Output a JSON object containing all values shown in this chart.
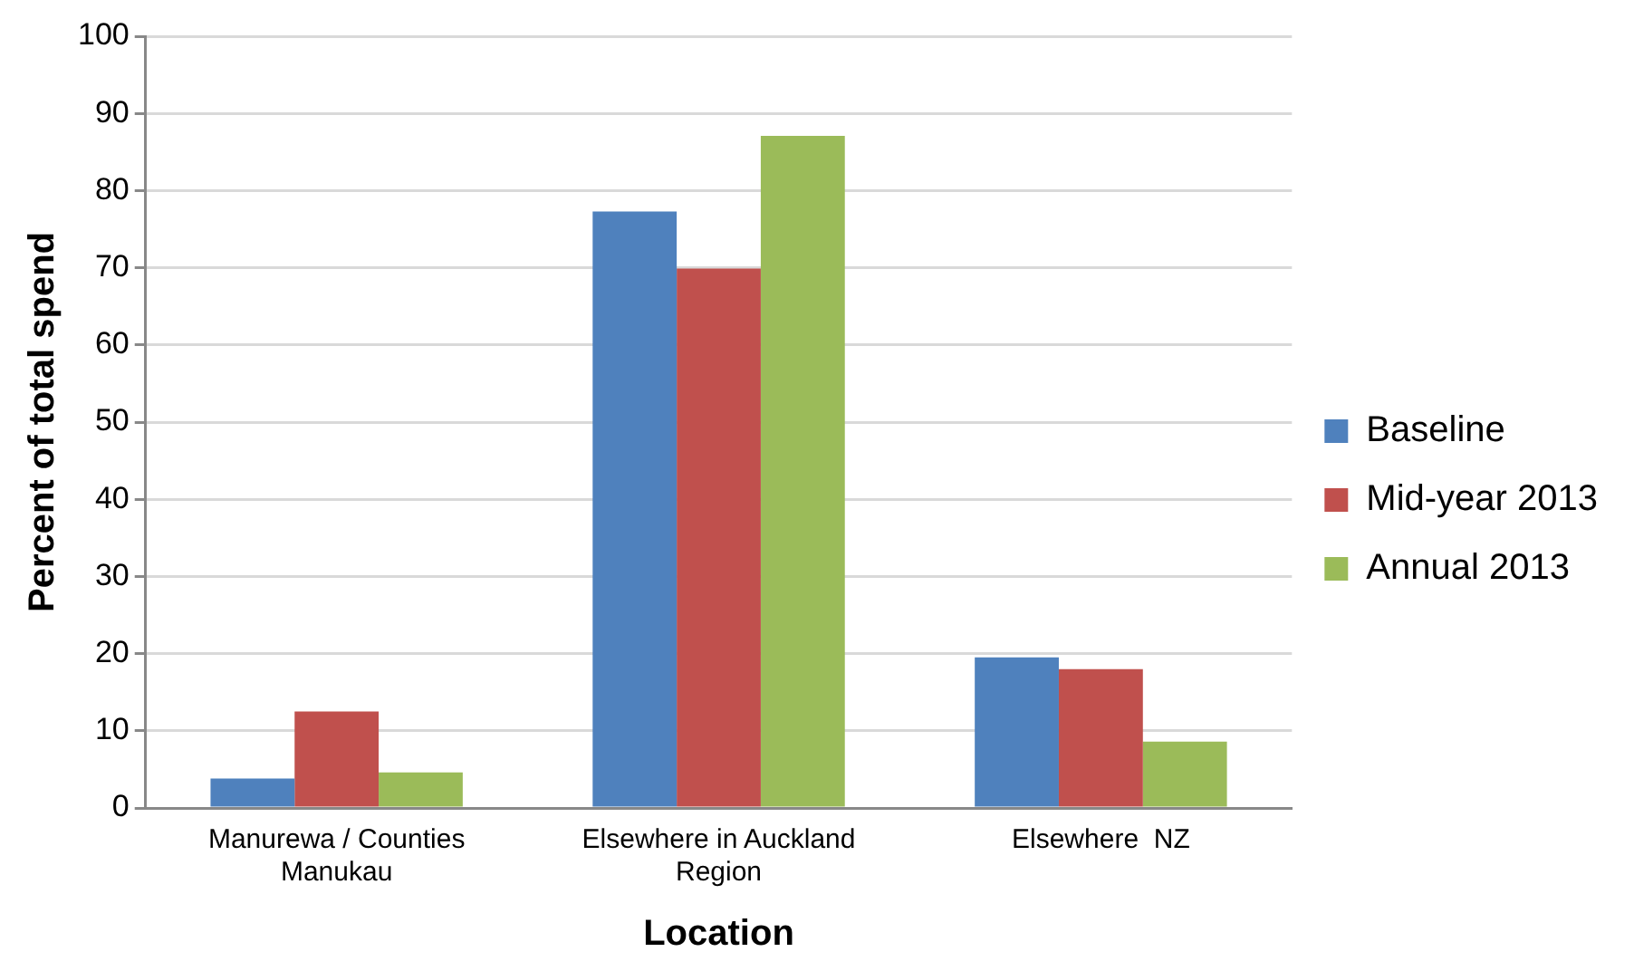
{
  "chart_data": {
    "type": "bar",
    "xlabel": "Location",
    "ylabel": "Percent of total spend",
    "categories": [
      "Manurewa / Counties Manukau",
      "Elsewhere in Auckland Region",
      "Elsewhere  NZ"
    ],
    "series": [
      {
        "name": "Baseline",
        "color": "#4f81bd",
        "values": [
          3.8,
          77.3,
          19.5
        ]
      },
      {
        "name": "Mid-year 2013",
        "color": "#c0504d",
        "values": [
          12.5,
          69.9,
          18.0
        ]
      },
      {
        "name": "Annual 2013",
        "color": "#9bbb59",
        "values": [
          4.6,
          87.1,
          8.6
        ]
      }
    ],
    "ylim": [
      0,
      100
    ],
    "yticks": [
      0,
      10,
      20,
      30,
      40,
      50,
      60,
      70,
      80,
      90,
      100
    ],
    "grid": "y",
    "legend": "right"
  }
}
